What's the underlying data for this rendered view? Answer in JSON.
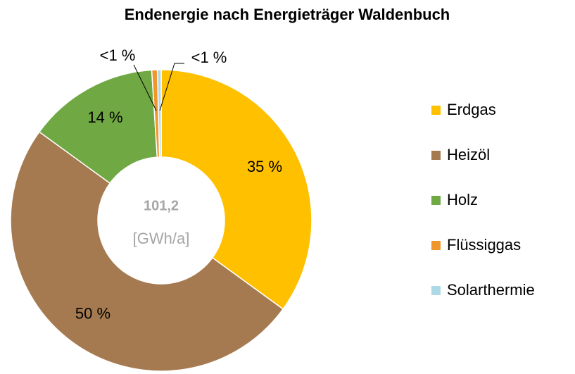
{
  "chart_data": {
    "type": "donut",
    "title": "Endenergie nach Energieträger Waldenbuch",
    "categories": [
      "Erdgas",
      "Heizöl",
      "Holz",
      "Flüssiggas",
      "Solarthermie"
    ],
    "values": [
      35,
      50,
      14,
      0.6,
      0.4
    ],
    "value_labels": [
      "35 %",
      "50 %",
      "14 %",
      "<1 %",
      "<1 %"
    ],
    "colors": [
      "#ffc000",
      "#a67a50",
      "#70a843",
      "#f0962e",
      "#add8e6"
    ],
    "center_value": "101,2",
    "center_unit": "[GWh/a]",
    "legend": "right"
  }
}
